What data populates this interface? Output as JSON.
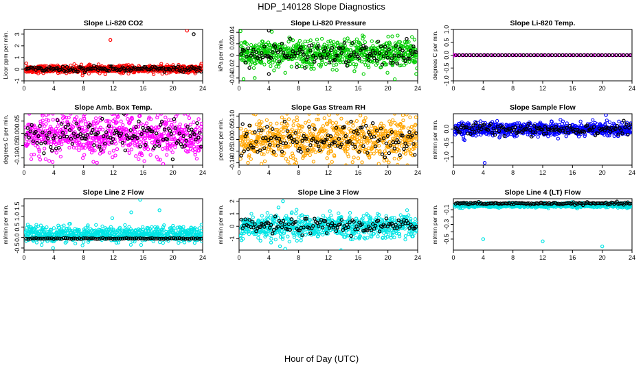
{
  "figure": {
    "title": "HDP_140128  Slope Diagnostics",
    "xlabel": "Hour of Day (UTC)"
  },
  "chart_data": [
    {
      "type": "scatter",
      "title": "Slope Li-820 CO2",
      "ylabel": "Licor ppm per min.",
      "color": "#ff0000",
      "xlim": [
        0,
        24
      ],
      "ylim": [
        -1,
        3.4
      ],
      "yticks": [
        -1,
        0,
        1,
        2,
        3
      ],
      "xticks": [
        0,
        4,
        8,
        12,
        16,
        20,
        24
      ],
      "noise_sd": 0.15,
      "black_sd": 0.12,
      "black_offset": 0,
      "black_style": "dense",
      "bias": 0,
      "outliers": [
        {
          "x": 11.6,
          "y": 2.5
        },
        {
          "x": 21.9,
          "y": 3.3
        },
        {
          "x": 22.8,
          "y": 3.0,
          "black": true
        },
        {
          "x": 0.3,
          "y": 0.5
        }
      ]
    },
    {
      "type": "scatter",
      "title": "Slope Li-820 Pressure",
      "ylabel": "kPa per min.",
      "color": "#00cc00",
      "xlim": [
        0,
        24
      ],
      "ylim": [
        -0.045,
        0.045
      ],
      "yticks": [
        -0.04,
        -0.02,
        0,
        0.02,
        0.04
      ],
      "xticks": [
        0,
        4,
        8,
        12,
        16,
        20,
        24
      ],
      "noise_sd": 0.012,
      "black_sd": 0.01,
      "black_offset": 0,
      "black_style": "dense",
      "bias": 0.003,
      "outliers": [
        {
          "x": 0.2,
          "y": 0.042
        },
        {
          "x": 4.4,
          "y": 0.041
        },
        {
          "x": 4.0,
          "y": 0.043,
          "black": true
        },
        {
          "x": 0.6,
          "y": -0.042
        },
        {
          "x": 2.1,
          "y": -0.04
        },
        {
          "x": 4.0,
          "y": -0.033,
          "black": true
        },
        {
          "x": 15.5,
          "y": -0.028
        },
        {
          "x": 23.8,
          "y": -0.033
        }
      ]
    },
    {
      "type": "scatter",
      "title": "Slope Li-820 Temp.",
      "ylabel": "degrees C per min.",
      "color": "#ff00ff",
      "xlim": [
        0,
        24
      ],
      "ylim": [
        -1,
        1
      ],
      "yticks": [
        -1,
        -0.5,
        0,
        0.5,
        1
      ],
      "ytick_labels": [
        "-1.0",
        "-0.5",
        "0.0",
        "0.5",
        "1.0"
      ],
      "xticks": [
        0,
        4,
        8,
        12,
        16,
        20,
        24
      ],
      "noise_sd": 0,
      "black_sd": 0,
      "black_offset": 0,
      "black_style": "dense",
      "bias": 0,
      "flat": true,
      "outliers": []
    },
    {
      "type": "scatter",
      "title": "Slope Amb. Box Temp.",
      "ylabel": "degrees C per min.",
      "color": "#ff00ff",
      "xlim": [
        0,
        24
      ],
      "ylim": [
        -0.13,
        0.08
      ],
      "yticks": [
        -0.1,
        -0.05,
        0,
        0.05
      ],
      "ytick_labels": [
        "-0.10",
        "-0.05",
        "0.00",
        "0.05"
      ],
      "xticks": [
        0,
        4,
        8,
        12,
        16,
        20,
        24
      ],
      "noise_sd": 0.04,
      "black_sd": 0.03,
      "black_offset": 0,
      "black_style": "dense",
      "bias": -0.01,
      "outliers": [
        {
          "x": 3.0,
          "y": 0.075
        },
        {
          "x": 18.7,
          "y": -0.125
        },
        {
          "x": 9.8,
          "y": -0.12
        }
      ]
    },
    {
      "type": "scatter",
      "title": "Slope Gas Stream RH",
      "ylabel": "percent per min.",
      "color": "#ffa500",
      "xlim": [
        0,
        24
      ],
      "ylim": [
        -0.11,
        0.11
      ],
      "yticks": [
        -0.1,
        -0.05,
        0,
        0.05,
        0.1
      ],
      "ytick_labels": [
        "-0.10",
        "-0.05",
        "0.00",
        "0.05",
        "0.10"
      ],
      "xticks": [
        0,
        4,
        8,
        12,
        16,
        20,
        24
      ],
      "noise_sd": 0.045,
      "black_sd": 0.035,
      "black_offset": 0,
      "black_style": "dense",
      "bias": 0,
      "outliers": [
        {
          "x": 1.2,
          "y": -0.1
        },
        {
          "x": 12.1,
          "y": 0.105
        }
      ]
    },
    {
      "type": "scatter",
      "title": "Slope Sample Flow",
      "ylabel": "ml/min per min.",
      "color": "#0000ff",
      "xlim": [
        0,
        24
      ],
      "ylim": [
        -1.3,
        0.55
      ],
      "yticks": [
        -1,
        -0.5,
        0
      ],
      "ytick_labels": [
        "-1.0",
        "-0.5",
        "0.0"
      ],
      "xticks": [
        0,
        4,
        8,
        12,
        16,
        20,
        24
      ],
      "noise_sd": 0.12,
      "black_sd": 0.1,
      "black_offset": 0,
      "black_style": "dense",
      "bias": 0,
      "outliers": [
        {
          "x": 4.2,
          "y": -1.22
        },
        {
          "x": 20.5,
          "y": 0.5
        },
        {
          "x": 1.5,
          "y": -0.4
        }
      ]
    },
    {
      "type": "scatter",
      "title": "Slope Line 2 Flow",
      "ylabel": "ml/min per min.",
      "color": "#00e5e5",
      "xlim": [
        0,
        24
      ],
      "ylim": [
        -0.6,
        1.85
      ],
      "yticks": [
        -0.5,
        0,
        0.5,
        1,
        1.5
      ],
      "ytick_labels": [
        "-0.5",
        "0.0",
        "0.5",
        "1.0",
        "1.5"
      ],
      "xticks": [
        0,
        4,
        8,
        12,
        16,
        20,
        24
      ],
      "noise_sd": 0.18,
      "black_sd": 0.01,
      "black_offset": -0.05,
      "black_style": "line",
      "bias": 0.15,
      "outliers": [
        {
          "x": 15.6,
          "y": 1.8
        },
        {
          "x": 18.2,
          "y": 1.3
        },
        {
          "x": 14.4,
          "y": 1.2
        },
        {
          "x": 3.9,
          "y": -0.5
        }
      ]
    },
    {
      "type": "scatter",
      "title": "Slope Line 3 Flow",
      "ylabel": "ml/min per min.",
      "color": "#00e5e5",
      "xlim": [
        0,
        24
      ],
      "ylim": [
        -1.9,
        2.2
      ],
      "yticks": [
        -1,
        0,
        1,
        2
      ],
      "xticks": [
        0,
        4,
        8,
        12,
        16,
        20,
        24
      ],
      "noise_sd": 0.45,
      "black_sd": 0.3,
      "black_offset": 0,
      "black_style": "dense",
      "bias": 0,
      "outliers": [
        {
          "x": 5.9,
          "y": 2.0
        },
        {
          "x": 5.5,
          "y": -1.6
        },
        {
          "x": 6.2,
          "y": -1.8
        },
        {
          "x": 5.3,
          "y": 1.5
        },
        {
          "x": 4.3,
          "y": -1.3
        }
      ]
    },
    {
      "type": "scatter",
      "title": "Slope Line 4 (LT) Flow",
      "ylabel": "ml/min per min.",
      "color": "#00e5e5",
      "xlim": [
        0,
        24
      ],
      "ylim": [
        -0.65,
        0.05
      ],
      "yticks": [
        -0.5,
        -0.4,
        -0.3,
        -0.2,
        -0.1
      ],
      "ytick_labels": [
        "-0.5",
        "",
        "-0.3",
        "",
        "-0.1"
      ],
      "xticks": [
        0,
        4,
        8,
        12,
        16,
        20,
        24
      ],
      "noise_sd": 0.015,
      "black_sd": 0.008,
      "black_offset": 0.005,
      "black_style": "dense",
      "bias": -0.04,
      "outliers": [
        {
          "x": 4.0,
          "y": -0.5
        },
        {
          "x": 12.0,
          "y": -0.53
        },
        {
          "x": 20.0,
          "y": -0.6
        }
      ]
    }
  ]
}
